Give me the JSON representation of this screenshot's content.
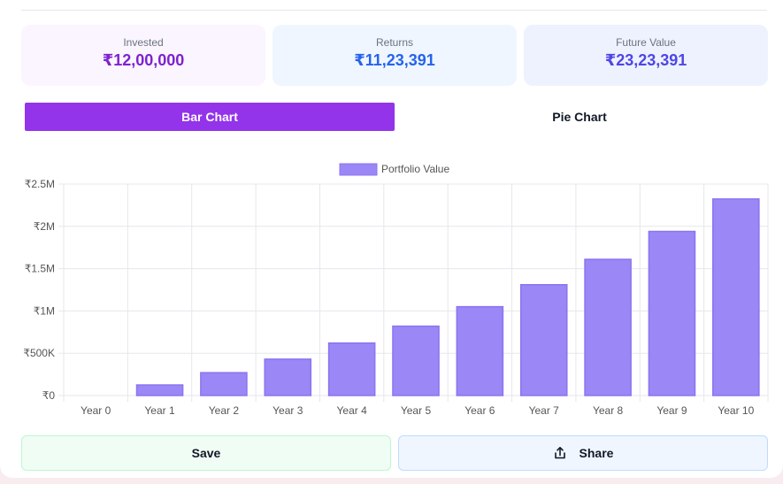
{
  "summary": {
    "invested": {
      "label": "Invested",
      "value": "₹12,00,000"
    },
    "returns": {
      "label": "Returns",
      "value": "₹11,23,391"
    },
    "future_value": {
      "label": "Future Value",
      "value": "₹23,23,391"
    }
  },
  "tabs": {
    "bar": "Bar Chart",
    "pie": "Pie Chart",
    "active": "Bar Chart"
  },
  "actions": {
    "save": "Save",
    "share": "Share",
    "share_icon": "share-icon"
  },
  "colors": {
    "bar_fill": "#9b87f5",
    "bar_border": "#8b74f0",
    "accent": "#9333ea"
  },
  "chart_data": {
    "type": "bar",
    "categories": [
      "Year 0",
      "Year 1",
      "Year 2",
      "Year 3",
      "Year 4",
      "Year 5",
      "Year 6",
      "Year 7",
      "Year 8",
      "Year 9",
      "Year 10"
    ],
    "series": [
      {
        "name": "Portfolio Value",
        "values": [
          0,
          125000,
          270000,
          430000,
          620000,
          820000,
          1050000,
          1310000,
          1610000,
          1940000,
          2323391
        ]
      }
    ],
    "ylim": [
      0,
      2500000
    ],
    "yticks": [
      0,
      500000,
      1000000,
      1500000,
      2000000,
      2500000
    ],
    "ytick_labels": [
      "₹0",
      "₹500K",
      "₹1M",
      "₹1.5M",
      "₹2M",
      "₹2.5M"
    ],
    "legend_position": "top",
    "grid": true
  }
}
